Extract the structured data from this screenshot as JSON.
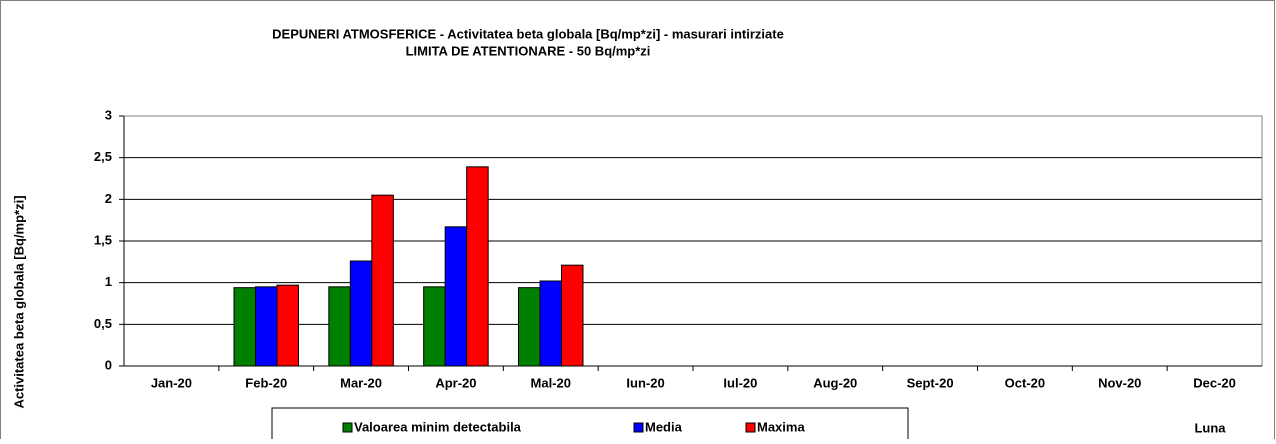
{
  "chart_data": {
    "type": "bar",
    "title": "DEPUNERI ATMOSFERICE - Activitatea beta globala [Bq/mp*zi] - masurari intirziate",
    "subtitle": "LIMITA DE ATENTIONARE - 50 Bq/mp*zi",
    "y_label": "Activitatea beta globala [Bq/mp*zi]",
    "x_label": "Luna",
    "categories": [
      "Jan-20",
      "Feb-20",
      "Mar-20",
      "Apr-20",
      "Mal-20",
      "Iun-20",
      "Iul-20",
      "Aug-20",
      "Sept-20",
      "Oct-20",
      "Nov-20",
      "Dec-20"
    ],
    "series": [
      {
        "name": "Valoarea minim detectabila",
        "color": "#008000",
        "values": [
          null,
          0.94,
          0.95,
          0.95,
          0.94,
          null,
          null,
          null,
          null,
          null,
          null,
          null
        ]
      },
      {
        "name": "Media",
        "color": "#0000ff",
        "values": [
          null,
          0.95,
          1.26,
          1.67,
          1.02,
          null,
          null,
          null,
          null,
          null,
          null,
          null
        ]
      },
      {
        "name": "Maxima",
        "color": "#ff0000",
        "values": [
          null,
          0.97,
          2.05,
          2.39,
          1.21,
          null,
          null,
          null,
          null,
          null,
          null,
          null
        ]
      }
    ],
    "ylim": [
      0,
      3
    ],
    "yticks": [
      0,
      {
        "value": 0.5,
        "label": "0,5"
      },
      1,
      {
        "value": 1.5,
        "label": "1,5"
      },
      2,
      {
        "value": 2.5,
        "label": "2,5"
      },
      3
    ],
    "grid": true
  }
}
